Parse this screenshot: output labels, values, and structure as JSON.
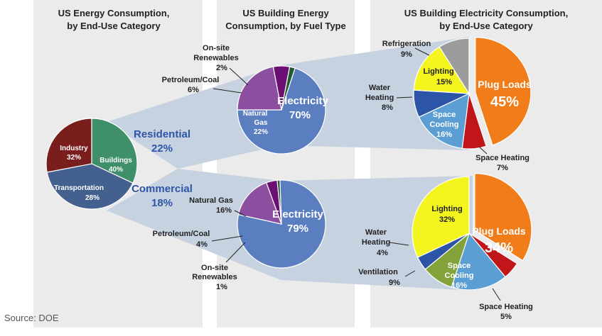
{
  "panels": {
    "overall_title": [
      "US Energy Consumption,",
      "by End-Use Category"
    ],
    "fuel_title": [
      "US Building Energy",
      "Consumption, by Fuel Type"
    ],
    "elec_title": [
      "US Building Electricity Consumption,",
      "by End-Use Category"
    ]
  },
  "segments": {
    "residential": {
      "name": "Residential",
      "pct": "22%"
    },
    "commercial": {
      "name": "Commercial",
      "pct": "18%"
    }
  },
  "source": "Source: DOE",
  "colors": {
    "industry": "#3f8f6a",
    "buildings": "#44608f",
    "transportation": "#7a1d1d",
    "electricity": "#5b7ec1",
    "natural_gas": "#8c4fa0",
    "petroleum_coal": "#6b0f73",
    "renewables": "#1f5a30",
    "plug_loads": "#f07d19",
    "space_heating": "#c0161a",
    "space_cooling": "#5a9ed3",
    "water_heating": "#2c55a8",
    "lighting": "#f4f41e",
    "refrigeration": "#9c9c9c",
    "ventilation": "#83a23a"
  },
  "chart_data": [
    {
      "type": "pie",
      "title": "US Energy Consumption, by End-Use Category",
      "slices": [
        {
          "label": "Industry",
          "value": 32,
          "display": "32%"
        },
        {
          "label": "Buildings",
          "value": 40,
          "display": "40%"
        },
        {
          "label": "Transportation",
          "value": 28,
          "display": "28%"
        }
      ]
    },
    {
      "type": "pie",
      "title": "US Building Energy Consumption, by Fuel Type",
      "segment": "Residential",
      "slices": [
        {
          "label": "Electricity",
          "value": 70,
          "display": "70%"
        },
        {
          "label": "Natural Gas",
          "value": 22,
          "display": "22%"
        },
        {
          "label": "Petroleum/Coal",
          "value": 6,
          "display": "6%"
        },
        {
          "label": "On-site Renewables",
          "value": 2,
          "display": "2%"
        }
      ]
    },
    {
      "type": "pie",
      "title": "US Building Energy Consumption, by Fuel Type",
      "segment": "Commercial",
      "slices": [
        {
          "label": "Electricity",
          "value": 79,
          "display": "79%"
        },
        {
          "label": "Natural Gas",
          "value": 16,
          "display": "16%"
        },
        {
          "label": "Petroleum/Coal",
          "value": 4,
          "display": "4%"
        },
        {
          "label": "On-site Renewables",
          "value": 1,
          "display": "1%"
        }
      ]
    },
    {
      "type": "pie",
      "title": "US Building Electricity Consumption, by End-Use Category",
      "segment": "Residential",
      "slices": [
        {
          "label": "Plug Loads",
          "value": 45,
          "display": "45%"
        },
        {
          "label": "Space Heating",
          "value": 7,
          "display": "7%"
        },
        {
          "label": "Space Cooling",
          "value": 16,
          "display": "16%"
        },
        {
          "label": "Water Heating",
          "value": 8,
          "display": "8%"
        },
        {
          "label": "Lighting",
          "value": 15,
          "display": "15%"
        },
        {
          "label": "Refrigeration",
          "value": 9,
          "display": "9%"
        }
      ]
    },
    {
      "type": "pie",
      "title": "US Building Electricity Consumption, by End-Use Category",
      "segment": "Commercial",
      "slices": [
        {
          "label": "Plug Loads",
          "value": 34,
          "display": "34%"
        },
        {
          "label": "Space Heating",
          "value": 5,
          "display": "5%"
        },
        {
          "label": "Space Cooling",
          "value": 16,
          "display": "16%"
        },
        {
          "label": "Ventilation",
          "value": 9,
          "display": "9%"
        },
        {
          "label": "Water Heating",
          "value": 4,
          "display": "4%"
        },
        {
          "label": "Lighting",
          "value": 32,
          "display": "32%"
        }
      ]
    }
  ]
}
